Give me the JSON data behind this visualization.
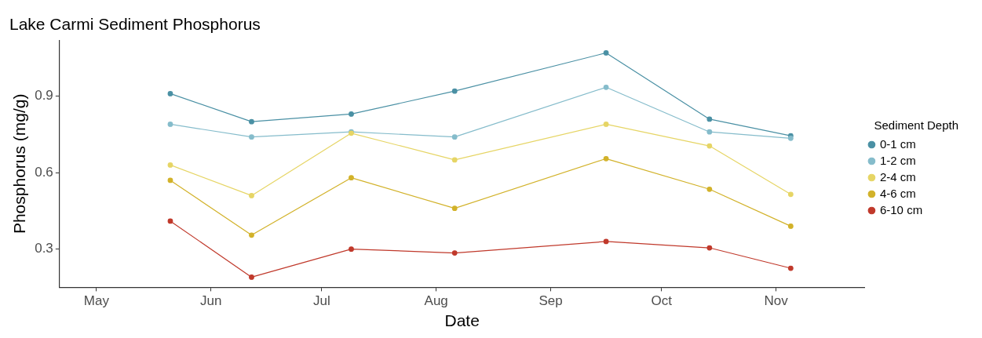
{
  "chart_data": {
    "type": "line",
    "title": "Lake Carmi Sediment Phosphorus",
    "xlabel": "Date",
    "ylabel": "Phosphorus (mg/g)",
    "legend_title": "Sediment Depth",
    "legend": "right",
    "grid": false,
    "marker": "circle",
    "line_style": "solid",
    "x": [
      "--05-21",
      "--06-12",
      "--07-09",
      "--08-06",
      "--09-16",
      "--10-14",
      "--11-05"
    ],
    "xlim": [
      "--04-21",
      "--11-25"
    ],
    "xticks": [
      {
        "value": "--05-01",
        "label": "May"
      },
      {
        "value": "--06-01",
        "label": "Jun"
      },
      {
        "value": "--07-01",
        "label": "Jul"
      },
      {
        "value": "--08-01",
        "label": "Aug"
      },
      {
        "value": "--09-01",
        "label": "Sep"
      },
      {
        "value": "--10-01",
        "label": "Oct"
      },
      {
        "value": "--11-01",
        "label": "Nov"
      }
    ],
    "ylim": [
      0.15,
      1.12
    ],
    "yticks": [
      0.3,
      0.6,
      0.9
    ],
    "series": [
      {
        "name": "0-1 cm",
        "color": "#4a90a4",
        "values": [
          0.91,
          0.8,
          0.83,
          0.92,
          1.07,
          0.81,
          0.745
        ]
      },
      {
        "name": "1-2 cm",
        "color": "#85bccb",
        "values": [
          0.79,
          0.74,
          0.76,
          0.74,
          0.935,
          0.76,
          0.735
        ]
      },
      {
        "name": "2-4 cm",
        "color": "#e6d565",
        "values": [
          0.63,
          0.51,
          0.755,
          0.65,
          0.79,
          0.705,
          0.515
        ]
      },
      {
        "name": "4-6 cm",
        "color": "#d2b22a",
        "values": [
          0.57,
          0.355,
          0.58,
          0.46,
          0.655,
          0.535,
          0.39
        ]
      },
      {
        "name": "6-10 cm",
        "color": "#c0392b",
        "values": [
          0.41,
          0.19,
          0.3,
          0.285,
          0.33,
          0.305,
          0.225
        ]
      }
    ]
  }
}
